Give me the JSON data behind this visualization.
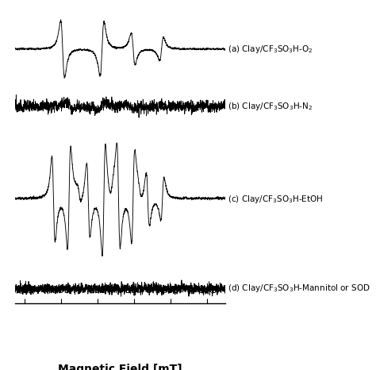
{
  "xlabel": "Magnetic Field [mT]",
  "xlim": [
    330.5,
    342.0
  ],
  "xticks": [
    331,
    333,
    335,
    337,
    339,
    341
  ],
  "labels": [
    "(a) Clay/CF$_3$SO$_3$H-O$_2$",
    "(b) Clay/CF$_3$SO$_3$H-N$_2$",
    "(c) Clay/CF$_3$SO$_3$H-EtOH",
    "(d) Clay/CF$_3$SO$_3$H-Mannitol or SOD"
  ],
  "spectrum_color": "#000000",
  "background_color": "#ffffff",
  "fig_width": 4.74,
  "fig_height": 4.66,
  "dpi": 100,
  "noise_seed": 17
}
